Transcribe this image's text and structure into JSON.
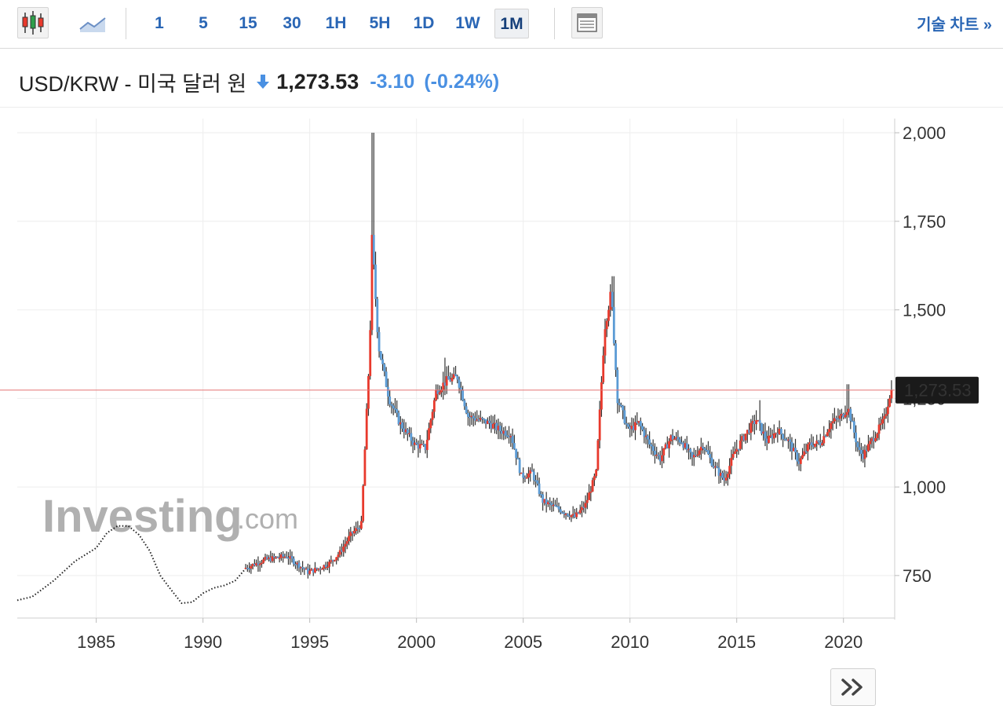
{
  "toolbar": {
    "chart_type_icons": [
      "candlestick-chart-icon",
      "line-chart-icon"
    ],
    "intervals": [
      "1",
      "5",
      "15",
      "30",
      "1H",
      "5H",
      "1D",
      "1W",
      "1M"
    ],
    "active_interval": "1M",
    "layout_icon": "layout-panel-icon",
    "technical_chart_link": "기술 차트 »"
  },
  "header": {
    "pair_title": "USD/KRW - 미국 달러 원",
    "direction": "down",
    "price": "1,273.53",
    "change": "-3.10",
    "change_pct": "(-0.24%)"
  },
  "colors": {
    "up": "#e8392c",
    "down": "#5b9bd5",
    "wick": "#333333",
    "price_line": "#e57373",
    "accent": "#2a66b5"
  },
  "watermark": {
    "brand": "Investing",
    "suffix": ".com"
  },
  "nav_button_icon": "double-chevron-right-icon",
  "chart_data": {
    "type": "candlestick",
    "title": "",
    "xlabel": "",
    "ylabel": "",
    "xlim": [
      1981.3,
      2022.4
    ],
    "ylim": [
      630,
      2040
    ],
    "x_ticks": [
      "1985",
      "1990",
      "1995",
      "2000",
      "2005",
      "2010",
      "2015",
      "2020"
    ],
    "y_ticks": [
      "750",
      "1,000",
      "1,250",
      "1,500",
      "1,750",
      "2,000"
    ],
    "current_price_label": "1,273.53",
    "current_price": 1273.53,
    "legend": "none",
    "grid": true,
    "early_series_style": "dotted line (pre-1992)",
    "early_series": [
      [
        1981.3,
        680
      ],
      [
        1982.0,
        690
      ],
      [
        1983.0,
        735
      ],
      [
        1984.0,
        790
      ],
      [
        1985.0,
        828
      ],
      [
        1985.5,
        870
      ],
      [
        1986.0,
        890
      ],
      [
        1986.5,
        890
      ],
      [
        1987.0,
        865
      ],
      [
        1987.5,
        820
      ],
      [
        1988.0,
        750
      ],
      [
        1988.5,
        710
      ],
      [
        1989.0,
        672
      ],
      [
        1989.5,
        675
      ],
      [
        1990.0,
        700
      ],
      [
        1990.5,
        715
      ],
      [
        1991.0,
        722
      ],
      [
        1991.5,
        735
      ],
      [
        1992.0,
        770
      ]
    ],
    "candle_series": [
      [
        1992.0,
        770
      ],
      [
        1993.0,
        795
      ],
      [
        1994.0,
        805
      ],
      [
        1995.0,
        760
      ],
      [
        1995.5,
        770
      ],
      [
        1996.0,
        785
      ],
      [
        1996.5,
        815
      ],
      [
        1997.0,
        865
      ],
      [
        1997.5,
        895
      ],
      [
        1997.9,
        1400
      ],
      [
        1998.0,
        1700
      ],
      [
        1998.3,
        1400
      ],
      [
        1998.8,
        1250
      ],
      [
        1999.3,
        1180
      ],
      [
        2000.0,
        1120
      ],
      [
        2000.5,
        1110
      ],
      [
        2001.0,
        1270
      ],
      [
        2001.5,
        1300
      ],
      [
        2002.0,
        1310
      ],
      [
        2002.5,
        1200
      ],
      [
        2003.0,
        1190
      ],
      [
        2003.5,
        1180
      ],
      [
        2004.0,
        1160
      ],
      [
        2004.5,
        1150
      ],
      [
        2005.0,
        1030
      ],
      [
        2005.5,
        1040
      ],
      [
        2006.0,
        960
      ],
      [
        2006.5,
        945
      ],
      [
        2007.0,
        930
      ],
      [
        2007.5,
        915
      ],
      [
        2008.0,
        950
      ],
      [
        2008.5,
        1040
      ],
      [
        2008.9,
        1450
      ],
      [
        2009.2,
        1550
      ],
      [
        2009.5,
        1250
      ],
      [
        2010.0,
        1160
      ],
      [
        2010.5,
        1180
      ],
      [
        2011.0,
        1120
      ],
      [
        2011.5,
        1080
      ],
      [
        2012.0,
        1140
      ],
      [
        2012.5,
        1130
      ],
      [
        2013.0,
        1080
      ],
      [
        2013.5,
        1120
      ],
      [
        2014.0,
        1060
      ],
      [
        2014.5,
        1020
      ],
      [
        2015.0,
        1100
      ],
      [
        2015.5,
        1150
      ],
      [
        2016.0,
        1190
      ],
      [
        2016.5,
        1130
      ],
      [
        2017.0,
        1160
      ],
      [
        2017.5,
        1130
      ],
      [
        2018.0,
        1070
      ],
      [
        2018.5,
        1120
      ],
      [
        2019.0,
        1125
      ],
      [
        2019.5,
        1180
      ],
      [
        2020.0,
        1200
      ],
      [
        2020.3,
        1225
      ],
      [
        2020.8,
        1100
      ],
      [
        2021.0,
        1090
      ],
      [
        2021.5,
        1140
      ],
      [
        2022.0,
        1190
      ],
      [
        2022.3,
        1273.53
      ]
    ],
    "spike_highs": [
      [
        1997.95,
        2000
      ],
      [
        2009.2,
        1595
      ],
      [
        2001.3,
        1365
      ],
      [
        2020.2,
        1290
      ],
      [
        2016.1,
        1245
      ]
    ]
  }
}
